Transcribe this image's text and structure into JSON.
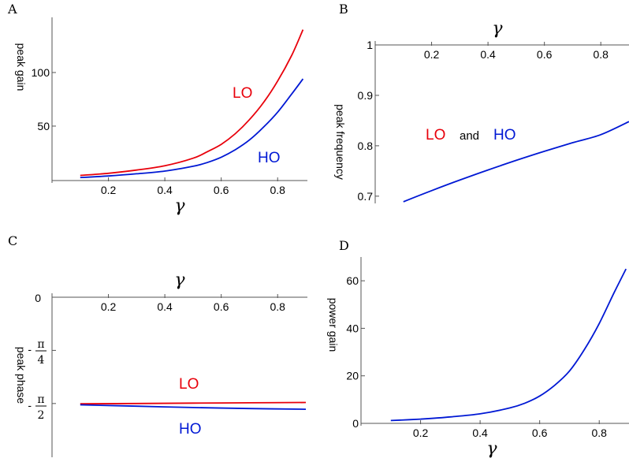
{
  "colors": {
    "LO": "#e8000b",
    "HO": "#0018d4",
    "axis": "#555555"
  },
  "chart_data": [
    {
      "panel": "A",
      "type": "line",
      "xlabel": "γ",
      "ylabel": "peak gain",
      "xlim": [
        0.0,
        0.9
      ],
      "ylim": [
        -3,
        150
      ],
      "xticks": [
        "0.2",
        "0.4",
        "0.6",
        "0.8"
      ],
      "yticks": [
        "50",
        "100"
      ],
      "series": [
        {
          "name": "LO",
          "color": "#e8000b",
          "x": [
            0.1,
            0.2,
            0.3,
            0.4,
            0.5,
            0.55,
            0.6,
            0.65,
            0.7,
            0.75,
            0.8,
            0.85,
            0.89
          ],
          "y": [
            4,
            6,
            9,
            13,
            20,
            26,
            33,
            43,
            56,
            72,
            92,
            116,
            140
          ]
        },
        {
          "name": "HO",
          "color": "#0018d4",
          "x": [
            0.1,
            0.2,
            0.3,
            0.4,
            0.5,
            0.55,
            0.6,
            0.65,
            0.7,
            0.75,
            0.8,
            0.85,
            0.89
          ],
          "y": [
            2,
            3.5,
            5.5,
            8,
            12.5,
            16,
            21,
            28,
            37,
            49,
            63,
            80,
            94
          ]
        }
      ],
      "annotations": [
        "LO",
        "HO"
      ]
    },
    {
      "panel": "B",
      "type": "line",
      "xlabel": "γ",
      "ylabel": "peak frequency",
      "xlim": [
        0.0,
        0.9
      ],
      "ylim": [
        0.67,
        1.0
      ],
      "xticks": [
        "0.2",
        "0.4",
        "0.6",
        "0.8"
      ],
      "yticks": [
        "0.7",
        "0.8",
        "0.9",
        "1"
      ],
      "series": [
        {
          "name": "LO and HO",
          "color": "#0018d4",
          "x": [
            0.1,
            0.2,
            0.3,
            0.4,
            0.5,
            0.6,
            0.7,
            0.8,
            0.9
          ],
          "y": [
            0.689,
            0.711,
            0.732,
            0.752,
            0.771,
            0.789,
            0.806,
            0.822,
            0.848
          ]
        }
      ],
      "annotation": {
        "lo": "LO",
        "and": "and",
        "ho": "HO"
      }
    },
    {
      "panel": "C",
      "type": "line",
      "xlabel": "γ",
      "ylabel": "peak phase",
      "xlim": [
        0.0,
        0.9
      ],
      "ylim": [
        -2.4,
        0.0
      ],
      "xticks": [
        "0.2",
        "0.4",
        "0.6",
        "0.8"
      ],
      "yticks": [
        "0",
        "-π/4",
        "-π/2"
      ],
      "series": [
        {
          "name": "LO",
          "color": "#e8000b",
          "x": [
            0.1,
            0.3,
            0.5,
            0.7,
            0.9
          ],
          "y": [
            -1.575,
            -1.57,
            -1.565,
            -1.56,
            -1.555
          ]
        },
        {
          "name": "HO",
          "color": "#0018d4",
          "x": [
            0.1,
            0.3,
            0.5,
            0.7,
            0.9
          ],
          "y": [
            -1.59,
            -1.61,
            -1.63,
            -1.645,
            -1.655
          ]
        }
      ],
      "annotations": [
        "LO",
        "HO"
      ]
    },
    {
      "panel": "D",
      "type": "line",
      "xlabel": "γ",
      "ylabel": "power gain",
      "xlim": [
        0.0,
        0.9
      ],
      "ylim": [
        -1,
        70
      ],
      "xticks": [
        "0.2",
        "0.4",
        "0.6",
        "0.8"
      ],
      "yticks": [
        "0",
        "20",
        "40",
        "60"
      ],
      "series": [
        {
          "name": "",
          "color": "#0018d4",
          "x": [
            0.1,
            0.2,
            0.3,
            0.4,
            0.5,
            0.55,
            0.6,
            0.65,
            0.7,
            0.75,
            0.8,
            0.85,
            0.89
          ],
          "y": [
            1.2,
            1.8,
            2.7,
            4,
            6.5,
            8.5,
            11.5,
            16,
            22,
            31,
            42,
            55,
            65
          ]
        }
      ]
    }
  ],
  "labels": {
    "A": "A",
    "B": "B",
    "C": "C",
    "D": "D",
    "gamma": "γ",
    "peak_gain": "peak gain",
    "peak_frequency": "peak frequency",
    "peak_phase": "peak phase",
    "power_gain": "power gain",
    "LO": "LO",
    "HO": "HO",
    "and": "and",
    "zero": "0",
    "minus": "-",
    "pi": "π",
    "four": "4",
    "two": "2"
  }
}
